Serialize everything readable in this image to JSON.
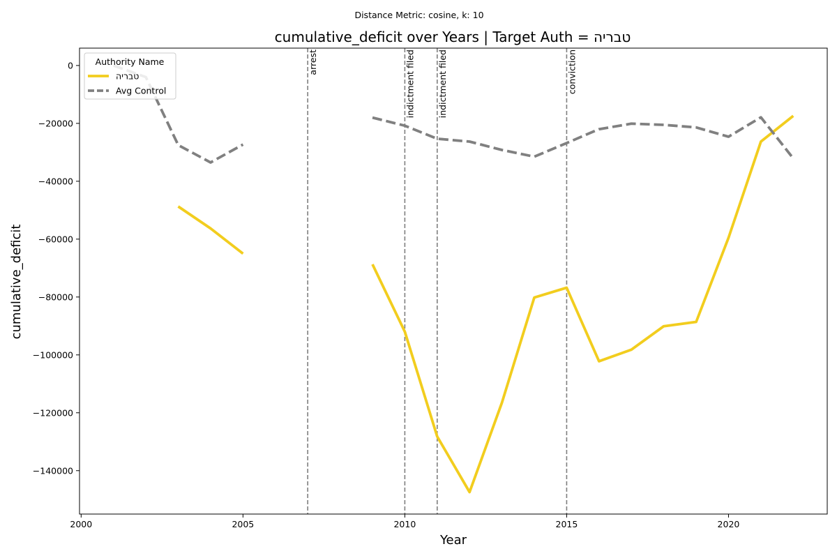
{
  "chart_data": {
    "type": "line",
    "subtitle": "Distance Metric: cosine, k: 10",
    "title": "cumulative_deficit over Years | Target Auth = טבריה",
    "xlabel": "Year",
    "ylabel": "cumulative_deficit",
    "xlim": [
      1999.95,
      2023.05
    ],
    "ylim": [
      -155000,
      6000
    ],
    "xticks": [
      2000,
      2005,
      2010,
      2015,
      2020
    ],
    "yticks": [
      0,
      -20000,
      -40000,
      -60000,
      -80000,
      -100000,
      -120000,
      -140000
    ],
    "ytick_labels": [
      "0",
      "−20000",
      "−40000",
      "−60000",
      "−80000",
      "−100000",
      "−120000",
      "−140000"
    ],
    "grid": false,
    "legend": {
      "title": "Authority Name",
      "position": "top-left"
    },
    "series": [
      {
        "name": "טבריה",
        "color": "#f2cd1e",
        "style": "solid",
        "points": [
          [
            2003,
            -48700
          ],
          [
            2004,
            -56300
          ],
          [
            2005,
            -65000
          ],
          null,
          [
            2009,
            -68700
          ],
          [
            2010,
            -92000
          ],
          [
            2011,
            -128200
          ],
          [
            2012,
            -147400
          ],
          [
            2013,
            -116500
          ],
          [
            2014,
            -80200
          ],
          [
            2015,
            -76800
          ],
          [
            2016,
            -102200
          ],
          [
            2017,
            -98200
          ],
          [
            2018,
            -90100
          ],
          [
            2019,
            -88600
          ],
          [
            2020,
            -59500
          ],
          [
            2021,
            -26300
          ],
          [
            2022,
            -17400
          ]
        ]
      },
      {
        "name": "Avg Control",
        "color": "#808080",
        "style": "dashed",
        "points": [
          [
            2001,
            0
          ],
          [
            2002,
            -4000
          ],
          [
            2003,
            -27500
          ],
          [
            2004,
            -33500
          ],
          [
            2005,
            -27300
          ],
          null,
          [
            2009,
            -18000
          ],
          [
            2010,
            -20800
          ],
          [
            2011,
            -25300
          ],
          [
            2012,
            -26300
          ],
          [
            2013,
            -29200
          ],
          [
            2014,
            -31500
          ],
          [
            2015,
            -26800
          ],
          [
            2016,
            -22000
          ],
          [
            2017,
            -20100
          ],
          [
            2018,
            -20500
          ],
          [
            2019,
            -21400
          ],
          [
            2020,
            -24600
          ],
          [
            2021,
            -17900
          ],
          [
            2022,
            -32100
          ]
        ]
      }
    ],
    "events": [
      {
        "x": 2007,
        "label": "arrest"
      },
      {
        "x": 2010,
        "label": "indictment filed"
      },
      {
        "x": 2011,
        "label": "indictment filed"
      },
      {
        "x": 2015,
        "label": "conviction"
      }
    ]
  }
}
